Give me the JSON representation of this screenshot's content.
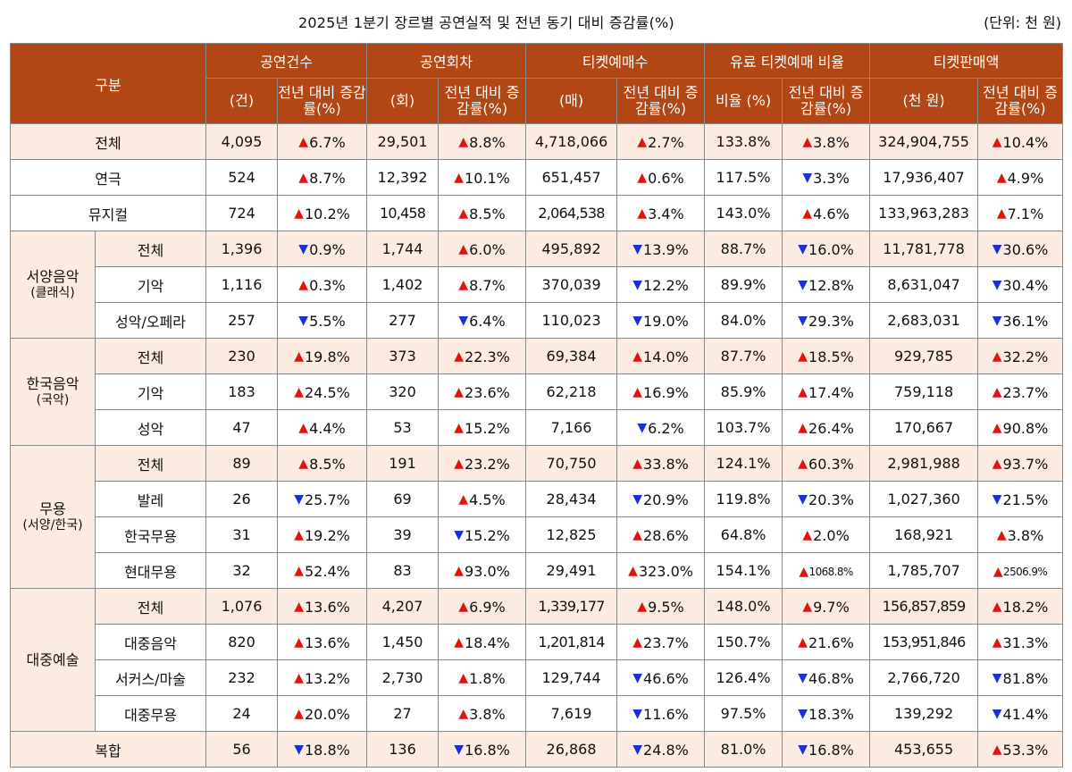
{
  "title": "2025년 1분기 장르별 공연실적 및 전년 동기 대비 증감률(%)",
  "unit": "(단위: 천 원)",
  "colors": {
    "header_bg": "#b24615",
    "total_bg": "#fcebe0",
    "up": "#e11212",
    "down": "#1a2fd6"
  },
  "headers": {
    "category": "구분",
    "groups": [
      "공연건수",
      "공연회차",
      "티켓예매수",
      "유료 티켓예매 비율",
      "티켓판매액"
    ],
    "subs": [
      "(건)",
      "전년 대비 증감률(%)",
      "(회)",
      "전년 대비 증감률(%)",
      "(매)",
      "전년 대비 증감률(%)",
      "비율 (%)",
      "전년 대비 증감률(%)",
      "(천 원)",
      "전년 대비 증감률(%)"
    ]
  },
  "groups": {
    "western": {
      "name": "서양음악",
      "sub": "(클래식)"
    },
    "korean": {
      "name": "한국음악",
      "sub": "(국악)"
    },
    "dance": {
      "name": "무용",
      "sub": "(서양/한국)"
    },
    "popular": {
      "name": "대중예술",
      "sub": ""
    }
  },
  "rows": [
    {
      "label": "전체",
      "cells": [
        "4,095",
        "6.7%",
        "29,501",
        "8.8%",
        "4,718,066",
        "2.7%",
        "133.8%",
        "3.8%",
        "324,904,755",
        "10.4%"
      ],
      "dirs": [
        "up",
        "up",
        "up",
        "up",
        "up"
      ]
    },
    {
      "label": "연극",
      "cells": [
        "524",
        "8.7%",
        "12,392",
        "10.1%",
        "651,457",
        "0.6%",
        "117.5%",
        "3.3%",
        "17,936,407",
        "4.9%"
      ],
      "dirs": [
        "up",
        "up",
        "up",
        "down",
        "up"
      ]
    },
    {
      "label": "뮤지컬",
      "cells": [
        "724",
        "10.2%",
        "10,458",
        "8.5%",
        "2,064,538",
        "3.4%",
        "143.0%",
        "4.6%",
        "133,963,283",
        "7.1%"
      ],
      "dirs": [
        "up",
        "up",
        "up",
        "up",
        "up"
      ]
    },
    {
      "label": "전체",
      "cells": [
        "1,396",
        "0.9%",
        "1,744",
        "6.0%",
        "495,892",
        "13.9%",
        "88.7%",
        "16.0%",
        "11,781,778",
        "30.6%"
      ],
      "dirs": [
        "down",
        "up",
        "down",
        "down",
        "down"
      ]
    },
    {
      "label": "기악",
      "cells": [
        "1,116",
        "0.3%",
        "1,402",
        "8.7%",
        "370,039",
        "12.2%",
        "89.9%",
        "12.8%",
        "8,631,047",
        "30.4%"
      ],
      "dirs": [
        "up",
        "up",
        "down",
        "down",
        "down"
      ]
    },
    {
      "label": "성악/오페라",
      "cells": [
        "257",
        "5.5%",
        "277",
        "6.4%",
        "110,023",
        "19.0%",
        "84.0%",
        "29.3%",
        "2,683,031",
        "36.1%"
      ],
      "dirs": [
        "down",
        "down",
        "down",
        "down",
        "down"
      ]
    },
    {
      "label": "전체",
      "cells": [
        "230",
        "19.8%",
        "373",
        "22.3%",
        "69,384",
        "14.0%",
        "87.7%",
        "18.5%",
        "929,785",
        "32.2%"
      ],
      "dirs": [
        "up",
        "up",
        "up",
        "up",
        "up"
      ]
    },
    {
      "label": "기악",
      "cells": [
        "183",
        "24.5%",
        "320",
        "23.6%",
        "62,218",
        "16.9%",
        "85.9%",
        "17.4%",
        "759,118",
        "23.7%"
      ],
      "dirs": [
        "up",
        "up",
        "up",
        "up",
        "up"
      ]
    },
    {
      "label": "성악",
      "cells": [
        "47",
        "4.4%",
        "53",
        "15.2%",
        "7,166",
        "6.2%",
        "103.7%",
        "26.4%",
        "170,667",
        "90.8%"
      ],
      "dirs": [
        "up",
        "up",
        "down",
        "up",
        "up"
      ]
    },
    {
      "label": "전체",
      "cells": [
        "89",
        "8.5%",
        "191",
        "23.2%",
        "70,750",
        "33.8%",
        "124.1%",
        "60.3%",
        "2,981,988",
        "93.7%"
      ],
      "dirs": [
        "up",
        "up",
        "up",
        "up",
        "up"
      ]
    },
    {
      "label": "발레",
      "cells": [
        "26",
        "25.7%",
        "69",
        "4.5%",
        "28,434",
        "20.9%",
        "119.8%",
        "20.3%",
        "1,027,360",
        "21.5%"
      ],
      "dirs": [
        "down",
        "up",
        "down",
        "down",
        "down"
      ]
    },
    {
      "label": "한국무용",
      "cells": [
        "31",
        "19.2%",
        "39",
        "15.2%",
        "12,825",
        "28.6%",
        "64.8%",
        "2.0%",
        "168,921",
        "3.8%"
      ],
      "dirs": [
        "up",
        "down",
        "up",
        "up",
        "up"
      ]
    },
    {
      "label": "현대무용",
      "cells": [
        "32",
        "52.4%",
        "83",
        "93.0%",
        "29,491",
        "323.0%",
        "154.1%",
        "1068.8%",
        "1,785,707",
        "2506.9%"
      ],
      "dirs": [
        "up",
        "up",
        "up",
        "up",
        "up"
      ]
    },
    {
      "label": "전체",
      "cells": [
        "1,076",
        "13.6%",
        "4,207",
        "6.9%",
        "1,339,177",
        "9.5%",
        "148.0%",
        "9.7%",
        "156,857,859",
        "18.2%"
      ],
      "dirs": [
        "up",
        "up",
        "up",
        "up",
        "up"
      ]
    },
    {
      "label": "대중음악",
      "cells": [
        "820",
        "13.6%",
        "1,450",
        "18.4%",
        "1,201,814",
        "23.7%",
        "150.7%",
        "21.6%",
        "153,951,846",
        "31.3%"
      ],
      "dirs": [
        "up",
        "up",
        "up",
        "up",
        "up"
      ]
    },
    {
      "label": "서커스/마술",
      "cells": [
        "232",
        "13.2%",
        "2,730",
        "1.8%",
        "129,744",
        "46.6%",
        "126.4%",
        "46.8%",
        "2,766,720",
        "81.8%"
      ],
      "dirs": [
        "up",
        "up",
        "down",
        "down",
        "down"
      ]
    },
    {
      "label": "대중무용",
      "cells": [
        "24",
        "20.0%",
        "27",
        "3.8%",
        "7,619",
        "11.6%",
        "97.5%",
        "18.3%",
        "139,292",
        "41.4%"
      ],
      "dirs": [
        "up",
        "up",
        "down",
        "down",
        "down"
      ]
    },
    {
      "label": "복합",
      "cells": [
        "56",
        "18.8%",
        "136",
        "16.8%",
        "26,868",
        "24.8%",
        "81.0%",
        "16.8%",
        "453,655",
        "53.3%"
      ],
      "dirs": [
        "down",
        "down",
        "down",
        "down",
        "up"
      ]
    }
  ]
}
